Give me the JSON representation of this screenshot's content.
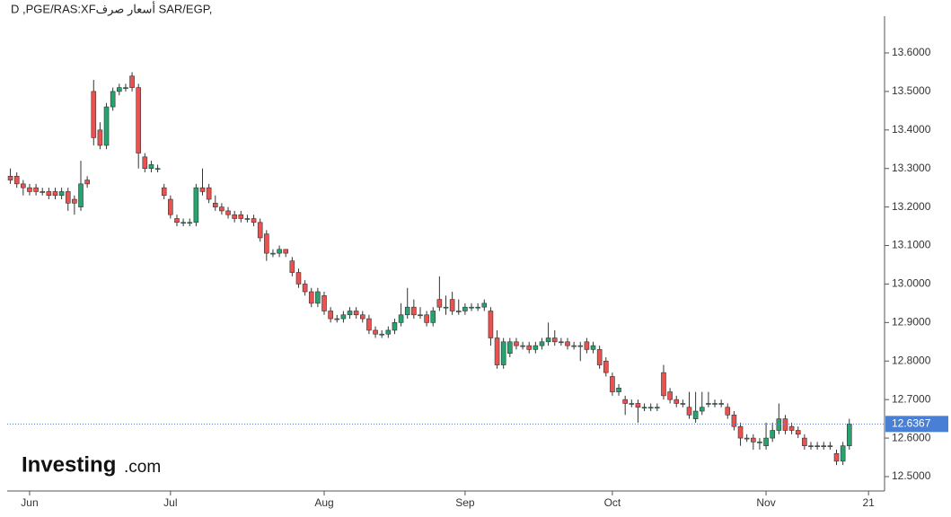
{
  "chart_data": {
    "type": "candlestick",
    "title": "D ,PGE/RAS:XFأسعار صرف SAR/EGP,",
    "up_color": "#26a36f",
    "down_color": "#e9524f",
    "open": [
      13.28,
      13.28,
      13.26,
      13.25,
      13.25,
      13.24,
      13.24,
      13.24,
      13.23,
      13.24,
      13.22,
      13.2,
      13.27,
      13.5,
      13.4,
      13.36,
      13.46,
      13.5,
      13.51,
      13.54,
      13.51,
      13.33,
      13.3,
      13.3,
      13.25,
      13.22,
      13.17,
      13.16,
      13.16,
      13.16,
      13.25,
      13.25,
      13.21,
      13.2,
      13.19,
      13.18,
      13.18,
      13.17,
      13.17,
      13.16,
      13.13,
      13.08,
      13.08,
      13.09,
      13.06,
      13.03,
      13.0,
      12.98,
      12.95,
      12.97,
      12.93,
      12.91,
      12.91,
      12.92,
      12.93,
      12.92,
      12.91,
      12.88,
      12.87,
      12.87,
      12.88,
      12.9,
      12.92,
      12.94,
      12.92,
      12.92,
      12.9,
      12.96,
      12.94,
      12.96,
      12.93,
      12.93,
      12.94,
      12.94,
      12.94,
      12.93,
      12.86,
      12.79,
      12.82,
      12.85,
      12.84,
      12.84,
      12.83,
      12.84,
      12.85,
      12.86,
      12.85,
      12.85,
      12.84,
      12.84,
      12.85,
      12.83,
      12.83,
      12.8,
      12.76,
      12.72,
      12.7,
      12.69,
      12.69,
      12.68,
      12.68,
      12.68,
      12.77,
      12.72,
      12.7,
      12.69,
      12.68,
      12.65,
      12.67,
      12.69,
      12.69,
      12.69,
      12.68,
      12.66,
      12.63,
      12.6,
      12.6,
      12.59,
      12.58,
      12.6,
      12.62,
      12.65,
      12.63,
      12.62,
      12.6,
      12.58,
      12.58,
      12.58,
      12.58,
      12.56,
      12.54,
      12.58
    ],
    "high": [
      13.3,
      13.29,
      13.27,
      13.26,
      13.26,
      13.25,
      13.25,
      13.25,
      13.25,
      13.25,
      13.23,
      13.32,
      13.28,
      13.53,
      13.42,
      13.47,
      13.51,
      13.52,
      13.52,
      13.55,
      13.52,
      13.34,
      13.32,
      13.31,
      13.26,
      13.23,
      13.18,
      13.17,
      13.17,
      13.26,
      13.3,
      13.26,
      13.23,
      13.21,
      13.2,
      13.19,
      13.19,
      13.18,
      13.18,
      13.17,
      13.14,
      13.09,
      13.1,
      13.09,
      13.07,
      13.04,
      13.01,
      12.99,
      12.99,
      12.98,
      12.94,
      12.92,
      12.93,
      12.94,
      12.94,
      12.93,
      12.92,
      12.89,
      12.88,
      12.89,
      12.91,
      12.95,
      12.99,
      12.96,
      12.94,
      12.93,
      12.94,
      13.02,
      12.97,
      12.98,
      12.96,
      12.95,
      12.95,
      12.95,
      12.96,
      12.94,
      12.88,
      12.86,
      12.86,
      12.86,
      12.85,
      12.85,
      12.85,
      12.86,
      12.9,
      12.88,
      12.86,
      12.86,
      12.85,
      12.85,
      12.86,
      12.85,
      12.84,
      12.81,
      12.77,
      12.74,
      12.71,
      12.7,
      12.7,
      12.69,
      12.69,
      12.69,
      12.79,
      12.73,
      12.71,
      12.7,
      12.72,
      12.72,
      12.72,
      12.72,
      12.7,
      12.7,
      12.69,
      12.67,
      12.64,
      12.61,
      12.61,
      12.6,
      12.64,
      12.64,
      12.69,
      12.66,
      12.64,
      12.63,
      12.61,
      12.59,
      12.59,
      12.59,
      12.59,
      12.57,
      12.59,
      12.65
    ],
    "low": [
      13.26,
      13.25,
      13.23,
      13.23,
      13.23,
      13.23,
      13.22,
      13.22,
      13.22,
      13.19,
      13.18,
      13.19,
      13.25,
      13.36,
      13.35,
      13.35,
      13.45,
      13.49,
      13.5,
      13.5,
      13.3,
      13.29,
      13.29,
      13.29,
      13.22,
      13.17,
      13.15,
      13.15,
      13.15,
      13.15,
      13.23,
      13.21,
      13.19,
      13.18,
      13.17,
      13.16,
      13.16,
      13.16,
      13.15,
      13.11,
      13.06,
      13.07,
      13.07,
      13.07,
      13.02,
      12.99,
      12.97,
      12.94,
      12.94,
      12.92,
      12.9,
      12.9,
      12.9,
      12.91,
      12.91,
      12.9,
      12.87,
      12.86,
      12.86,
      12.86,
      12.87,
      12.89,
      12.91,
      12.91,
      12.91,
      12.89,
      12.89,
      12.93,
      12.92,
      12.92,
      12.92,
      12.92,
      12.93,
      12.93,
      12.93,
      12.84,
      12.78,
      12.78,
      12.81,
      12.83,
      12.83,
      12.82,
      12.82,
      12.83,
      12.84,
      12.84,
      12.84,
      12.83,
      12.83,
      12.8,
      12.82,
      12.82,
      12.78,
      12.76,
      12.71,
      12.71,
      12.66,
      12.68,
      12.64,
      12.67,
      12.67,
      12.67,
      12.7,
      12.69,
      12.68,
      12.68,
      12.65,
      12.64,
      12.66,
      12.68,
      12.68,
      12.68,
      12.65,
      12.62,
      12.58,
      12.59,
      12.57,
      12.57,
      12.57,
      12.59,
      12.61,
      12.61,
      12.61,
      12.6,
      12.57,
      12.57,
      12.57,
      12.57,
      12.57,
      12.53,
      12.53,
      12.57
    ],
    "close": [
      13.27,
      13.26,
      13.25,
      13.24,
      13.24,
      13.24,
      13.23,
      13.23,
      13.24,
      13.21,
      13.21,
      13.26,
      13.26,
      13.38,
      13.36,
      13.46,
      13.5,
      13.51,
      13.51,
      13.51,
      13.34,
      13.3,
      13.31,
      13.3,
      13.23,
      13.18,
      13.16,
      13.16,
      13.16,
      13.25,
      13.24,
      13.22,
      13.2,
      13.19,
      13.18,
      13.17,
      13.17,
      13.17,
      13.16,
      13.12,
      13.08,
      13.08,
      13.09,
      13.08,
      13.03,
      13.0,
      12.98,
      12.95,
      12.98,
      12.93,
      12.91,
      12.91,
      12.92,
      12.93,
      12.92,
      12.91,
      12.88,
      12.87,
      12.87,
      12.88,
      12.9,
      12.92,
      12.94,
      12.92,
      12.92,
      12.9,
      12.93,
      12.94,
      12.94,
      12.93,
      12.93,
      12.94,
      12.94,
      12.94,
      12.95,
      12.86,
      12.79,
      12.85,
      12.85,
      12.84,
      12.84,
      12.83,
      12.84,
      12.85,
      12.86,
      12.85,
      12.85,
      12.84,
      12.84,
      12.84,
      12.83,
      12.84,
      12.79,
      12.77,
      12.72,
      12.73,
      12.69,
      12.69,
      12.68,
      12.68,
      12.68,
      12.68,
      12.71,
      12.7,
      12.69,
      12.69,
      12.66,
      12.67,
      12.68,
      12.69,
      12.69,
      12.69,
      12.66,
      12.63,
      12.6,
      12.6,
      12.59,
      12.59,
      12.6,
      12.62,
      12.65,
      12.62,
      12.62,
      12.61,
      12.58,
      12.58,
      12.58,
      12.58,
      12.58,
      12.54,
      12.58,
      12.6367
    ],
    "xlim": [
      -0.5,
      136.5
    ],
    "xticks": [
      {
        "value": 3,
        "label": "Jun"
      },
      {
        "value": 25,
        "label": "Jul"
      },
      {
        "value": 49,
        "label": "Aug"
      },
      {
        "value": 71,
        "label": "Sep"
      },
      {
        "value": 94,
        "label": "Oct"
      },
      {
        "value": 118,
        "label": "Nov"
      },
      {
        "value": 134,
        "label": "21"
      }
    ],
    "ylim": [
      12.4627,
      13.6955
    ],
    "yticks": [
      {
        "value": 12.5,
        "label": "12.5000"
      },
      {
        "value": 12.6,
        "label": "12.6000"
      },
      {
        "value": 12.7,
        "label": "12.7000"
      },
      {
        "value": 12.8,
        "label": "12.8000"
      },
      {
        "value": 12.9,
        "label": "12.9000"
      },
      {
        "value": 13.0,
        "label": "13.0000"
      },
      {
        "value": 13.1,
        "label": "13.1000"
      },
      {
        "value": 13.2,
        "label": "13.2000"
      },
      {
        "value": 13.3,
        "label": "13.3000"
      },
      {
        "value": 13.4,
        "label": "13.4000"
      },
      {
        "value": 13.5,
        "label": "13.5000"
      },
      {
        "value": 13.6,
        "label": "13.6000"
      }
    ],
    "last_price": 12.6367,
    "last_color": "#4a7fd6",
    "watermark": {
      "brand": "Investing",
      "suffix": ".com"
    }
  }
}
